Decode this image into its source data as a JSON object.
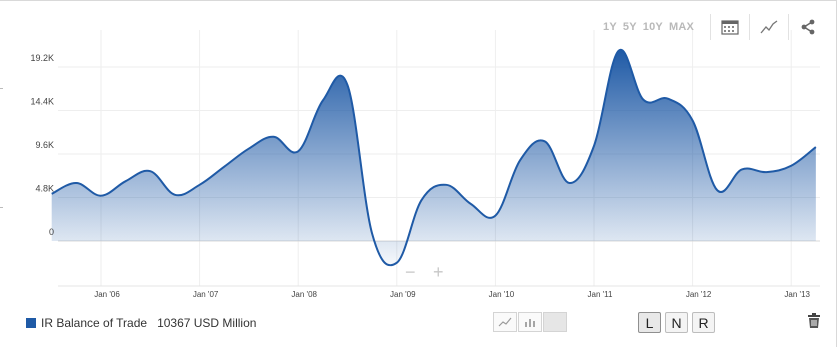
{
  "toolbar": {
    "ranges": [
      "1Y",
      "5Y",
      "10Y",
      "MAX"
    ],
    "icons": [
      "calendar-icon",
      "chart-line-icon",
      "share-icon"
    ]
  },
  "chart_data": {
    "type": "area",
    "title": "",
    "xlabel": "",
    "ylabel": "",
    "x_tick_labels": [
      "Jan '06",
      "Jan '07",
      "Jan '08",
      "Jan '09",
      "Jan '10",
      "Jan '11",
      "Jan '12",
      "Jan '13"
    ],
    "y_tick_labels": [
      "0",
      "4.8K",
      "9.6K",
      "14.4K",
      "19.2K"
    ],
    "y_ticks": [
      0,
      4800,
      9600,
      14400,
      19200
    ],
    "ylim": [
      -3000,
      22500
    ],
    "xlim": [
      2005.5,
      2013.3
    ],
    "grid": true,
    "legend_position": "bottom-left",
    "series": [
      {
        "name": "IR Balance of Trade",
        "color": "#1f5aa6",
        "x": [
          2005.5,
          2005.75,
          2006.0,
          2006.25,
          2006.5,
          2006.75,
          2007.0,
          2007.25,
          2007.5,
          2007.75,
          2008.0,
          2008.25,
          2008.5,
          2008.75,
          2009.0,
          2009.25,
          2009.5,
          2009.75,
          2010.0,
          2010.25,
          2010.5,
          2010.75,
          2011.0,
          2011.25,
          2011.5,
          2011.75,
          2012.0,
          2012.25,
          2012.5,
          2012.75,
          2013.0,
          2013.25
        ],
        "values": [
          5200,
          6400,
          5000,
          6600,
          7700,
          5100,
          6200,
          8200,
          10200,
          11500,
          9900,
          15500,
          17200,
          800,
          -2400,
          4500,
          6200,
          4100,
          2800,
          8900,
          11000,
          6400,
          10500,
          21000,
          15600,
          15700,
          13300,
          5600,
          7900,
          7600,
          8300,
          10367
        ]
      }
    ]
  },
  "legend": {
    "series_name": "IR Balance of Trade",
    "value_text": "10367 USD Million"
  },
  "zoom": {
    "minus": "−",
    "plus": "+"
  },
  "chart_type_buttons": [
    {
      "icon": "line-chart-icon",
      "active": false
    },
    {
      "icon": "bar-chart-icon",
      "active": false
    },
    {
      "icon": "blank-type-icon",
      "active": true
    }
  ],
  "axis_buttons": [
    "L",
    "N",
    "R"
  ],
  "footer_icons": [
    "trash-icon"
  ]
}
